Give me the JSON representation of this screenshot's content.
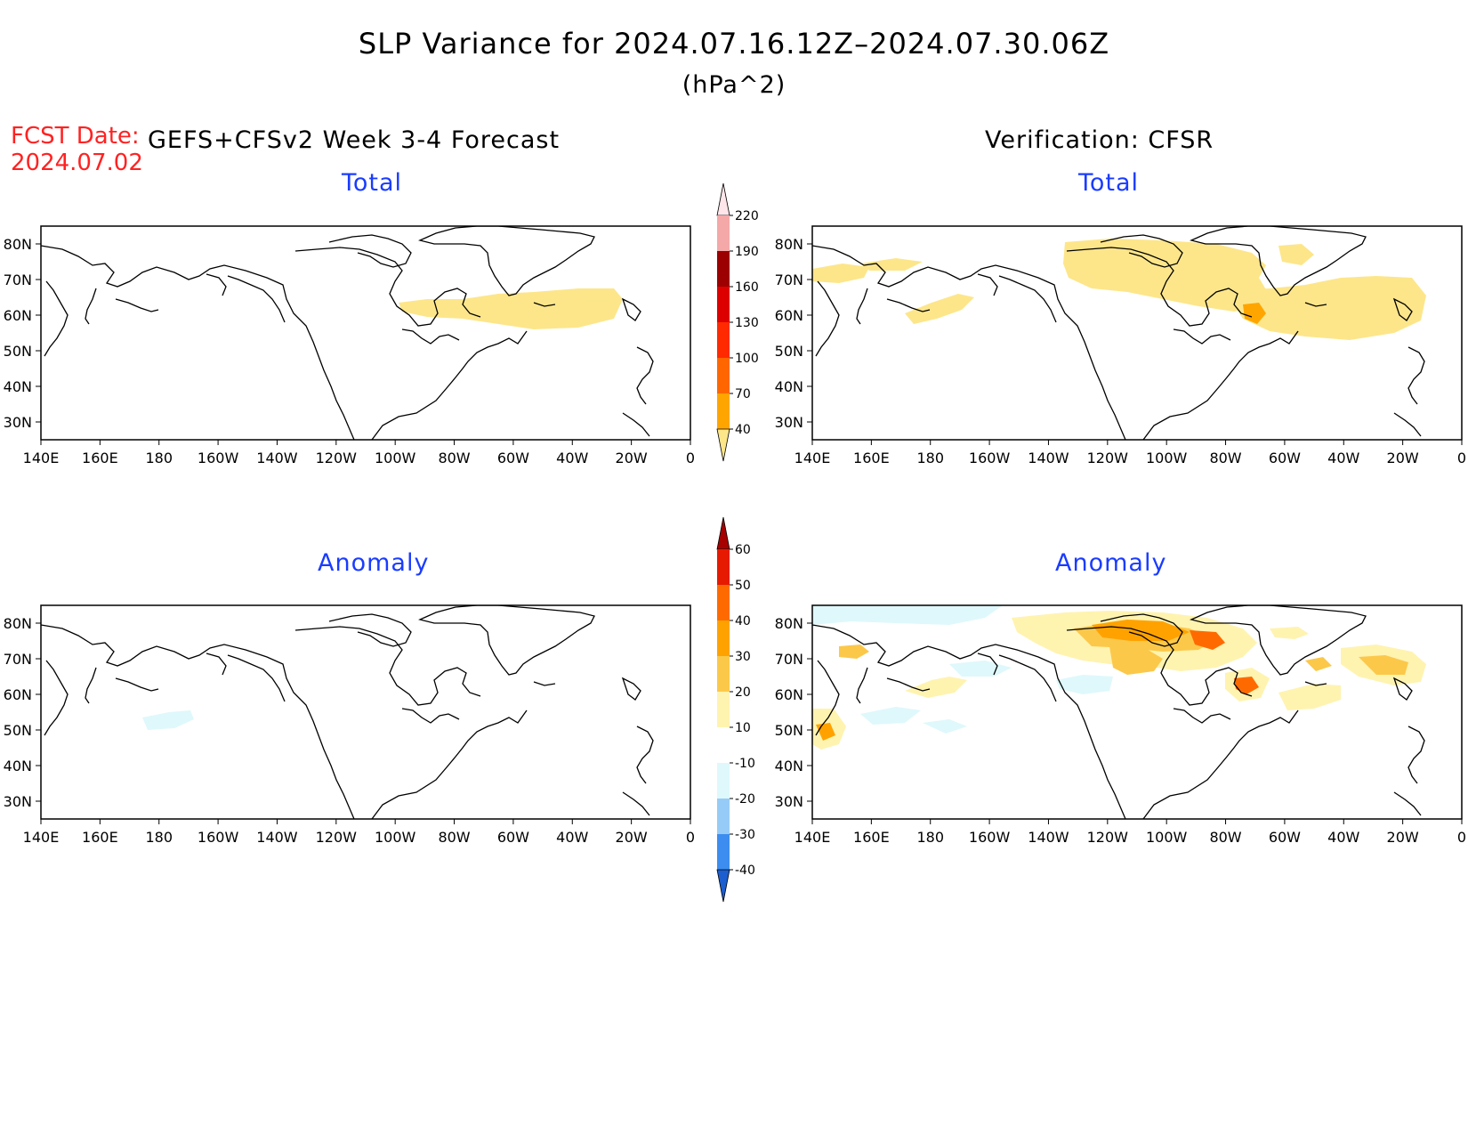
{
  "title": "SLP Variance for 2024.07.16.12Z–2024.07.30.06Z",
  "units": "(hPa^2)",
  "fcst_label": "FCST Date:",
  "fcst_date": "2024.07.02",
  "forecast_source": "GEFS+CFSv2 Week 3-4 Forecast",
  "verification_source": "Verification: CFSR",
  "panels": [
    {
      "title": "Total",
      "column": "forecast",
      "row": "total"
    },
    {
      "title": "Total",
      "column": "verification",
      "row": "total"
    },
    {
      "title": "Anomaly",
      "column": "forecast",
      "row": "anomaly"
    },
    {
      "title": "Anomaly",
      "column": "verification",
      "row": "anomaly"
    }
  ],
  "map": {
    "x_ticks": [
      "140E",
      "160E",
      "180",
      "160W",
      "140W",
      "120W",
      "100W",
      "80W",
      "60W",
      "40W",
      "20W",
      "0"
    ],
    "y_ticks": [
      "80N",
      "70N",
      "60N",
      "50N",
      "40N",
      "30N"
    ],
    "lon_range": [
      "140E",
      "0"
    ],
    "lat_range": [
      "25N",
      "85N"
    ]
  },
  "colorbars": {
    "total": {
      "levels": [
        "40",
        "70",
        "100",
        "130",
        "160",
        "190",
        "220"
      ],
      "colors": [
        "#fde68a",
        "#ffa500",
        "#ff6600",
        "#ff2a00",
        "#dd0000",
        "#9c0000",
        "#f4a8a8",
        "#ffe6ea"
      ]
    },
    "anomaly": {
      "levels": [
        "-40",
        "-30",
        "-20",
        "-10",
        "10",
        "20",
        "30",
        "40",
        "50",
        "60"
      ],
      "colors": [
        "#1c5ecf",
        "#3d8df0",
        "#96cbf7",
        "#dff8fb",
        "#ffffff",
        "#fff3b0",
        "#fcc84a",
        "#ffa200",
        "#ff6a00",
        "#e61a00",
        "#a60000"
      ]
    }
  },
  "colors": {
    "title_red": "#ff2222",
    "panel_title_blue": "#1a3cff",
    "land_outline": "#000000"
  }
}
